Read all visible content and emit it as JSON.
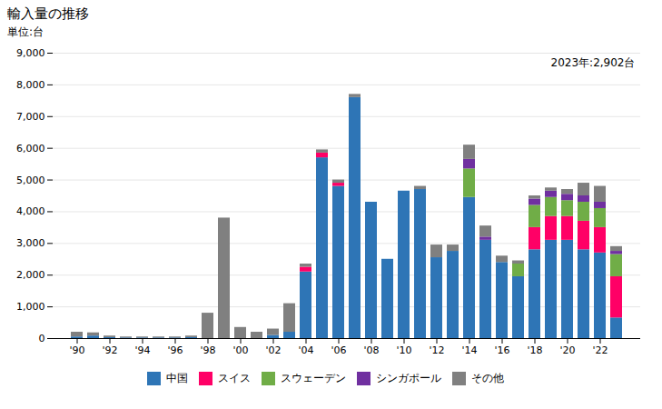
{
  "chart_data": {
    "type": "bar",
    "title": "輸入量の推移",
    "y_label": "単位:台",
    "annotation": "2023年:2,902台",
    "stacked": true,
    "categories": [
      "'90",
      null,
      "'92",
      null,
      "'94",
      null,
      "'96",
      null,
      "'98",
      null,
      "'00",
      null,
      "'02",
      null,
      "'04",
      null,
      "'06",
      null,
      "'08",
      null,
      "'10",
      null,
      "'12",
      null,
      "'14",
      null,
      "'16",
      null,
      "'18",
      null,
      "'20",
      null,
      "'22",
      null
    ],
    "series": [
      {
        "name": "中国",
        "color": "#2E75B6",
        "values": [
          50,
          80,
          30,
          20,
          20,
          20,
          20,
          30,
          0,
          0,
          0,
          0,
          100,
          200,
          2100,
          5700,
          4800,
          7600,
          4300,
          2500,
          4650,
          4700,
          2550,
          2750,
          4450,
          3100,
          2400,
          1950,
          2800,
          3100,
          3100,
          2800,
          2700,
          650
        ]
      },
      {
        "name": "スイス",
        "color": "#FF0066",
        "values": [
          0,
          0,
          0,
          0,
          0,
          0,
          0,
          0,
          0,
          0,
          0,
          0,
          0,
          0,
          150,
          150,
          100,
          0,
          0,
          0,
          0,
          0,
          0,
          0,
          0,
          0,
          0,
          0,
          700,
          750,
          750,
          900,
          800,
          1300
        ]
      },
      {
        "name": "スウェーデン",
        "color": "#70AD47",
        "values": [
          0,
          0,
          0,
          0,
          0,
          0,
          0,
          0,
          0,
          0,
          0,
          0,
          0,
          0,
          0,
          0,
          0,
          0,
          0,
          0,
          0,
          0,
          0,
          0,
          900,
          0,
          0,
          400,
          700,
          600,
          500,
          600,
          600,
          700
        ]
      },
      {
        "name": "シンガポール",
        "color": "#7030A0",
        "values": [
          0,
          0,
          0,
          0,
          0,
          0,
          0,
          0,
          0,
          0,
          0,
          0,
          0,
          0,
          0,
          0,
          0,
          0,
          0,
          0,
          0,
          0,
          0,
          0,
          300,
          100,
          0,
          0,
          200,
          200,
          200,
          200,
          200,
          100
        ]
      },
      {
        "name": "その他",
        "color": "#808080",
        "values": [
          150,
          100,
          50,
          30,
          30,
          30,
          30,
          50,
          800,
          3800,
          350,
          200,
          200,
          900,
          100,
          100,
          100,
          100,
          0,
          0,
          0,
          100,
          400,
          200,
          450,
          350,
          200,
          100,
          100,
          100,
          150,
          400,
          500,
          150
        ]
      }
    ],
    "ylim": [
      0,
      9000
    ],
    "yticks": [
      0,
      {
        "value": 1000,
        "label": "1,000"
      },
      {
        "value": 2000,
        "label": "2,000"
      },
      {
        "value": 3000,
        "label": "3,000"
      },
      {
        "value": 4000,
        "label": "4,000"
      },
      {
        "value": 5000,
        "label": "5,000"
      },
      {
        "value": 6000,
        "label": "6,000"
      },
      {
        "value": 7000,
        "label": "7,000"
      },
      {
        "value": 8000,
        "label": "8,000"
      },
      {
        "value": 9000,
        "label": "9,000"
      }
    ],
    "grid": true,
    "legend": "bottom"
  }
}
